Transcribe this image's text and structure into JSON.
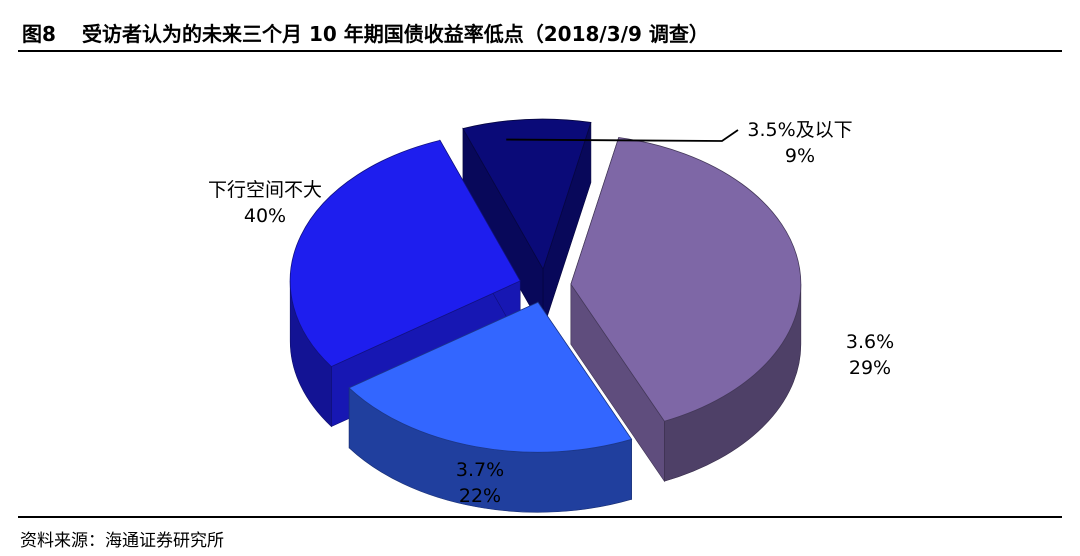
{
  "header": {
    "figure_label": "图8",
    "title": "受访者认为的未来三个月 10 年期国债收益率低点（2018/3/9 调查）"
  },
  "footer": {
    "source": "资料来源：海通证券研究所"
  },
  "chart_data": {
    "type": "pie",
    "style": "3d-exploded",
    "slices": [
      {
        "label": "下行空间不大",
        "value": 40,
        "value_text": "40%",
        "color": "#7E67A6"
      },
      {
        "label": "3.7%",
        "value": 22,
        "value_text": "22%",
        "color": "#3366FF"
      },
      {
        "label": "3.6%",
        "value": 29,
        "value_text": "29%",
        "color": "#1E1EEE"
      },
      {
        "label": "3.5%及以下",
        "value": 9,
        "value_text": "9%",
        "color": "#0A0A78"
      }
    ]
  }
}
